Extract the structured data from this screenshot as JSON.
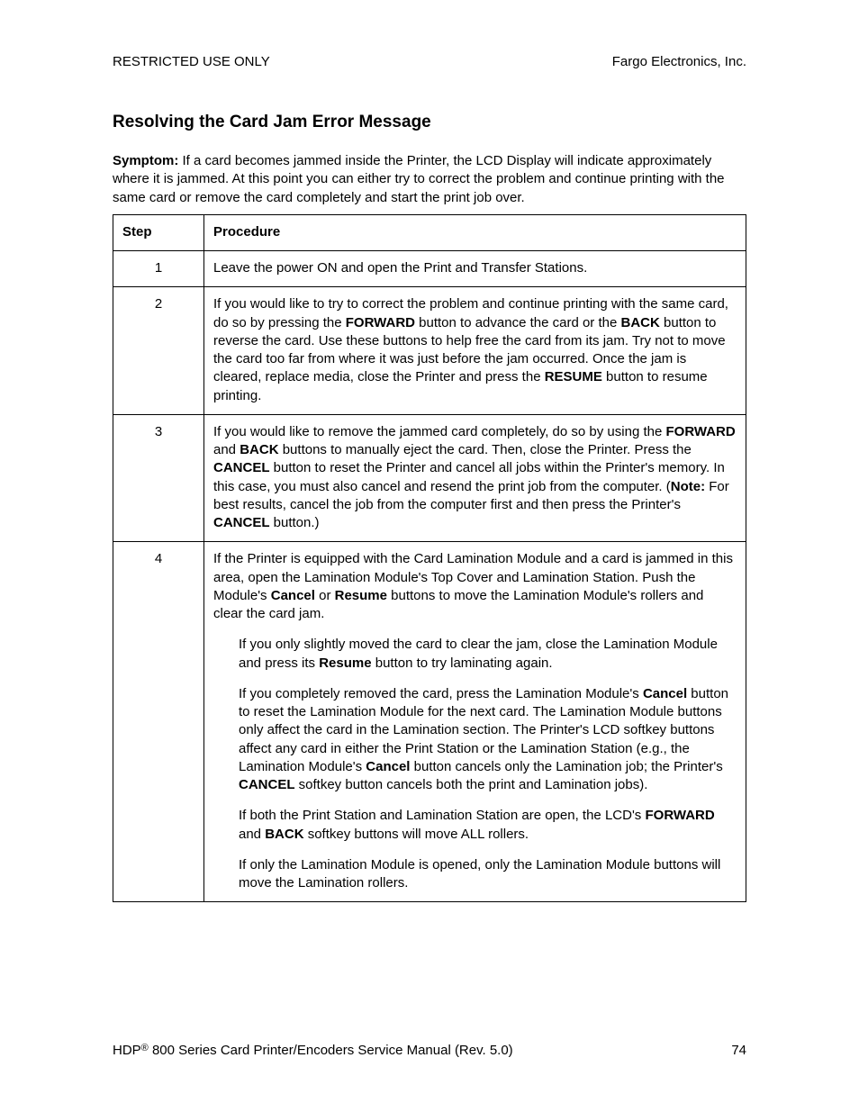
{
  "header": {
    "left": "RESTRICTED USE ONLY",
    "right": "Fargo Electronics, Inc."
  },
  "title": "Resolving the Card Jam Error Message",
  "symptom_label": "Symptom:",
  "symptom_text": "  If a card becomes jammed inside the Printer, the LCD Display will indicate approximately where it is jammed. At this point you can either try to correct the problem and continue printing with the same card or remove the card completely and start the print job over.",
  "table": {
    "head_step": "Step",
    "head_proc": "Procedure",
    "row1_step": "1",
    "row1_text": "Leave the power ON and open the Print and Transfer Stations.",
    "row2_step": "2",
    "row2_a": "If you would like to try to correct the problem and continue printing with the same card, do so by pressing the ",
    "row2_b": "FORWARD",
    "row2_c": " button to advance the card or the ",
    "row2_d": "BACK",
    "row2_e": " button to reverse the card. Use these buttons to help free the card from its jam. Try not to move the card too far from where it was just before the jam occurred. Once the jam is cleared, replace media, close the Printer and press the ",
    "row2_f": "RESUME",
    "row2_g": " button to resume printing.",
    "row3_step": "3",
    "row3_a": "If you would like to remove the jammed card completely, do so by using the ",
    "row3_b": "FORWARD",
    "row3_c": " and ",
    "row3_d": "BACK",
    "row3_e": " buttons to manually eject the card. Then, close the Printer. Press the ",
    "row3_f": "CANCEL",
    "row3_g": " button to reset the Printer and cancel all jobs within the Printer's memory. In this case, you must also cancel and resend the print job from the computer. (",
    "row3_h": "Note:",
    "row3_i": "  For best results, cancel the job from the computer first and then press the Printer's ",
    "row3_j": "CANCEL",
    "row3_k": " button.)",
    "row4_step": "4",
    "row4_p1_a": "If the Printer is equipped with the Card Lamination Module and a card is jammed in this area, open the Lamination Module's Top Cover and Lamination Station. Push the Module's ",
    "row4_p1_b": "Cancel",
    "row4_p1_c": " or ",
    "row4_p1_d": "Resume",
    "row4_p1_e": " buttons to move the Lamination Module's rollers and clear the card jam.",
    "row4_p2_a": "If you only slightly moved the card to clear the jam, close the Lamination Module and press its ",
    "row4_p2_b": "Resume",
    "row4_p2_c": " button to try laminating again.",
    "row4_p3_a": "If you completely removed the card, press the Lamination Module's ",
    "row4_p3_b": "Cancel",
    "row4_p3_c": " button to reset the Lamination Module for the next card. The Lamination Module buttons only affect the card in the Lamination section. The Printer's LCD softkey buttons affect any card in either the Print Station or the Lamination Station (e.g., the Lamination Module's ",
    "row4_p3_d": "Cancel",
    "row4_p3_e": " button cancels only the Lamination job; the Printer's ",
    "row4_p3_f": "CANCEL",
    "row4_p3_g": " softkey button cancels both the print and Lamination jobs).",
    "row4_p4_a": "If both the Print Station and Lamination Station are open, the LCD's ",
    "row4_p4_b": "FORWARD",
    "row4_p4_c": " and ",
    "row4_p4_d": "BACK",
    "row4_p4_e": " softkey buttons will move ALL rollers.",
    "row4_p5": "If only the Lamination Module is opened, only the Lamination Module buttons will move the Lamination rollers."
  },
  "footer": {
    "left_a": "HDP",
    "left_b": " 800 Series Card Printer/Encoders Service Manual (Rev. 5.0)",
    "pagenum": "74"
  }
}
